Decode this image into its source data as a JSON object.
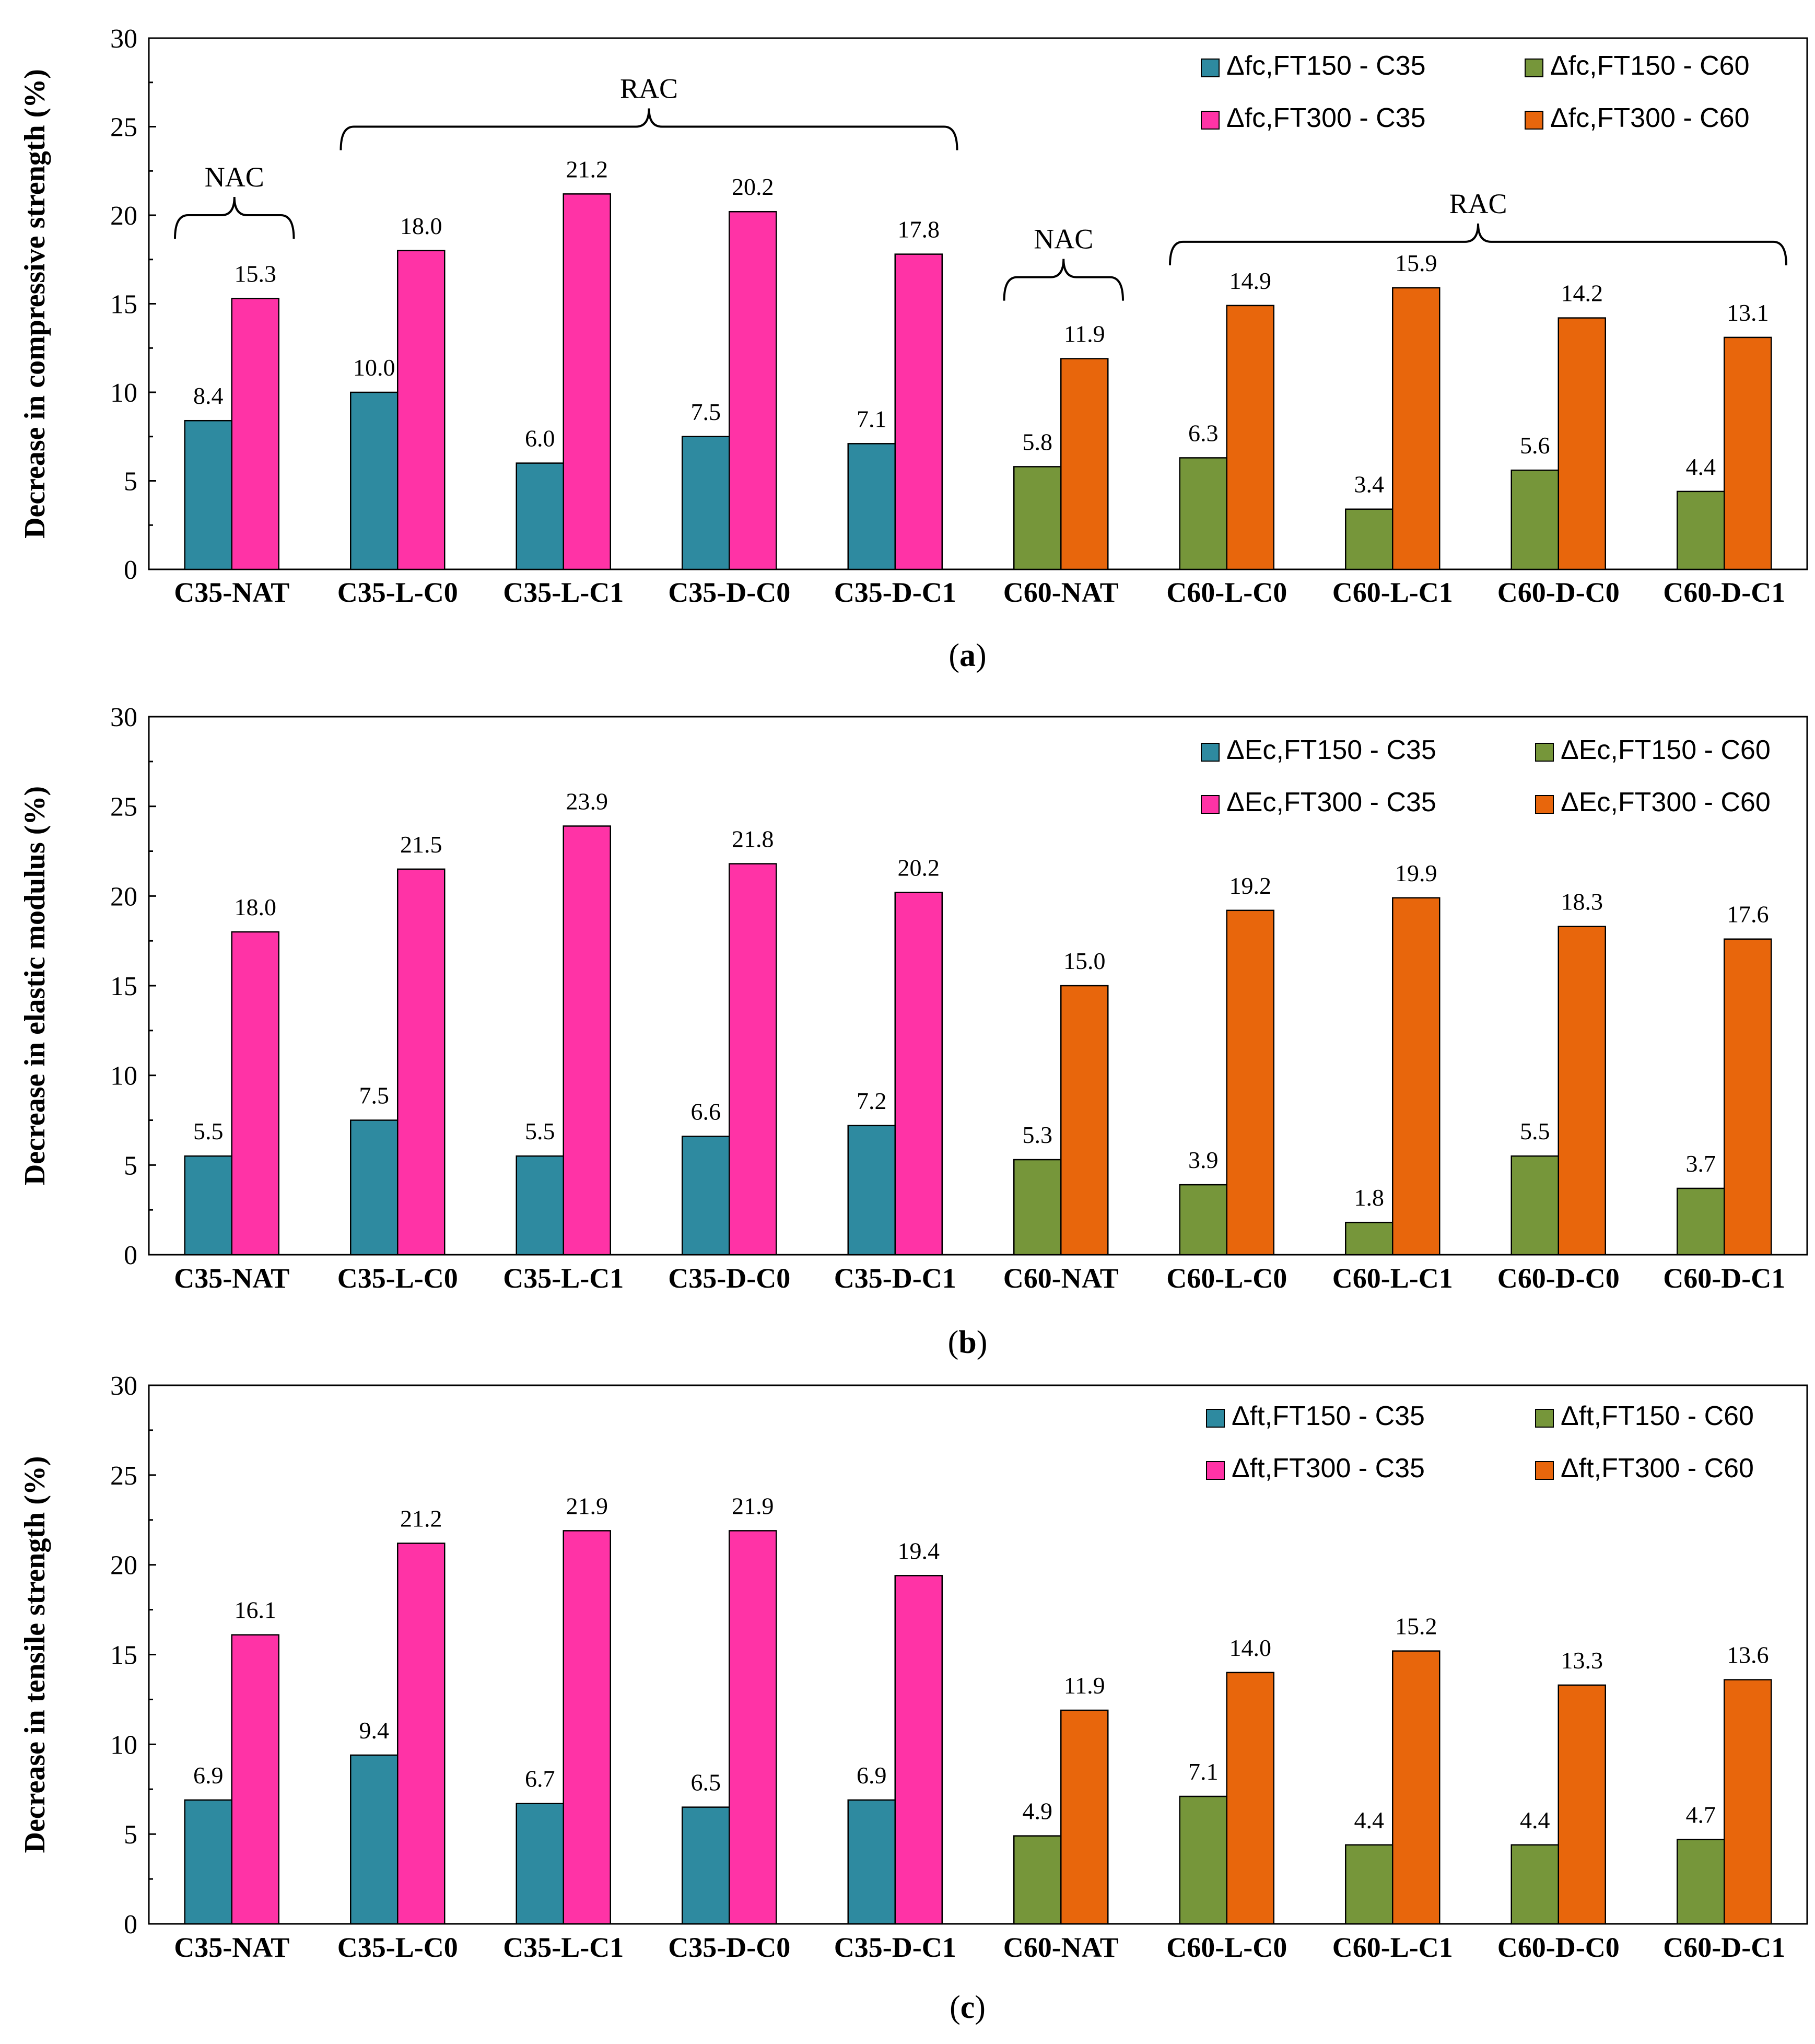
{
  "colors": {
    "c35_ft150": "#2e8aa0",
    "c35_ft300": "#ff33a6",
    "c60_ft150": "#76963a",
    "c60_ft300": "#e8660c",
    "axis": "#000000"
  },
  "chart_data": [
    {
      "type": "bar",
      "panel_label_open": "(",
      "panel_label_letter": "a",
      "panel_label_close": ")",
      "ylabel": "Decrease in compressive strength (%)",
      "xlabel": "",
      "ylim": [
        0,
        30
      ],
      "yticks": [
        0,
        5,
        10,
        15,
        20,
        25,
        30
      ],
      "categories": [
        "C35-NAT",
        "C35-L-C0",
        "C35-L-C1",
        "C35-D-C0",
        "C35-D-C1",
        "C60-NAT",
        "C60-L-C0",
        "C60-L-C1",
        "C60-D-C0",
        "C60-D-C1"
      ],
      "series": [
        {
          "name": "Δfc,FT150 - C35",
          "color_key": "c35_ft150",
          "values": [
            8.4,
            10.0,
            6.0,
            7.5,
            7.1,
            null,
            null,
            null,
            null,
            null
          ]
        },
        {
          "name": "Δfc,FT300 - C35",
          "color_key": "c35_ft300",
          "values": [
            15.3,
            18.0,
            21.2,
            20.2,
            17.8,
            null,
            null,
            null,
            null,
            null
          ]
        },
        {
          "name": "Δfc,FT150 - C60",
          "color_key": "c60_ft150",
          "values": [
            null,
            null,
            null,
            null,
            null,
            5.8,
            6.3,
            3.4,
            5.6,
            4.4
          ]
        },
        {
          "name": "Δfc,FT300 - C60",
          "color_key": "c60_ft300",
          "values": [
            null,
            null,
            null,
            null,
            null,
            11.9,
            14.9,
            15.9,
            14.2,
            13.1
          ]
        }
      ],
      "data_labels": {
        "ft150": [
          "8.4",
          "10.0",
          "6.0",
          "7.5",
          "7.1",
          "5.8",
          "6.3",
          "3.4",
          "5.6",
          "4.4"
        ],
        "ft300": [
          "15.3",
          "18.0",
          "21.2",
          "20.2",
          "17.8",
          "11.9",
          "14.9",
          "15.9",
          "14.2",
          "13.1"
        ]
      },
      "legend": [
        "Δfc,FT150 - C35",
        "Δfc,FT150 - C60",
        "Δfc,FT300 - C35",
        "Δfc,FT300 - C60"
      ],
      "legend_position": "top-right",
      "annotations": [
        {
          "text": "NAC",
          "from_category": 0,
          "to_category": 0,
          "at_value": 20.0
        },
        {
          "text": "RAC",
          "from_category": 1,
          "to_category": 4,
          "at_value": 25.0
        },
        {
          "text": "NAC",
          "from_category": 5,
          "to_category": 5,
          "at_value": 16.5
        },
        {
          "text": "RAC",
          "from_category": 6,
          "to_category": 9,
          "at_value": 18.5
        }
      ]
    },
    {
      "type": "bar",
      "panel_label_open": "(",
      "panel_label_letter": "b",
      "panel_label_close": ")",
      "ylabel": "Decrease in elastic modulus (%)",
      "xlabel": "",
      "ylim": [
        0,
        30
      ],
      "yticks": [
        0,
        5,
        10,
        15,
        20,
        25,
        30
      ],
      "categories": [
        "C35-NAT",
        "C35-L-C0",
        "C35-L-C1",
        "C35-D-C0",
        "C35-D-C1",
        "C60-NAT",
        "C60-L-C0",
        "C60-L-C1",
        "C60-D-C0",
        "C60-D-C1"
      ],
      "series": [
        {
          "name": "ΔEc,FT150 - C35",
          "color_key": "c35_ft150",
          "values": [
            5.5,
            7.5,
            5.5,
            6.6,
            7.2,
            null,
            null,
            null,
            null,
            null
          ]
        },
        {
          "name": "ΔEc,FT300 - C35",
          "color_key": "c35_ft300",
          "values": [
            18.0,
            21.5,
            23.9,
            21.8,
            20.2,
            null,
            null,
            null,
            null,
            null
          ]
        },
        {
          "name": "ΔEc,FT150 - C60",
          "color_key": "c60_ft150",
          "values": [
            null,
            null,
            null,
            null,
            null,
            5.3,
            3.9,
            1.8,
            5.5,
            3.7
          ]
        },
        {
          "name": "ΔEc,FT300 - C60",
          "color_key": "c60_ft300",
          "values": [
            null,
            null,
            null,
            null,
            null,
            15.0,
            19.2,
            19.9,
            18.3,
            17.6
          ]
        }
      ],
      "data_labels": {
        "ft150": [
          "5.5",
          "7.5",
          "5.5",
          "6.6",
          "7.2",
          "5.3",
          "3.9",
          "1.8",
          "5.5",
          "3.7"
        ],
        "ft300": [
          "18.0",
          "21.5",
          "23.9",
          "21.8",
          "20.2",
          "15.0",
          "19.2",
          "19.9",
          "18.3",
          "17.6"
        ]
      },
      "legend": [
        "ΔEc,FT150 - C35",
        "ΔEc,FT150 - C60",
        "ΔEc,FT300 - C35",
        "ΔEc,FT300 - C60"
      ],
      "legend_position": "top-right",
      "annotations": []
    },
    {
      "type": "bar",
      "panel_label_open": "(",
      "panel_label_letter": "c",
      "panel_label_close": ")",
      "ylabel": "Decrease in tensile strength (%)",
      "xlabel": "",
      "ylim": [
        0,
        30
      ],
      "yticks": [
        0,
        5,
        10,
        15,
        20,
        25,
        30
      ],
      "categories": [
        "C35-NAT",
        "C35-L-C0",
        "C35-L-C1",
        "C35-D-C0",
        "C35-D-C1",
        "C60-NAT",
        "C60-L-C0",
        "C60-L-C1",
        "C60-D-C0",
        "C60-D-C1"
      ],
      "series": [
        {
          "name": "Δft,FT150 - C35",
          "color_key": "c35_ft150",
          "values": [
            6.9,
            9.4,
            6.7,
            6.5,
            6.9,
            null,
            null,
            null,
            null,
            null
          ]
        },
        {
          "name": "Δft,FT300 - C35",
          "color_key": "c35_ft300",
          "values": [
            16.1,
            21.2,
            21.9,
            21.9,
            19.4,
            null,
            null,
            null,
            null,
            null
          ]
        },
        {
          "name": "Δft,FT150 - C60",
          "color_key": "c60_ft150",
          "values": [
            null,
            null,
            null,
            null,
            null,
            4.9,
            7.1,
            4.4,
            4.4,
            4.7
          ]
        },
        {
          "name": "Δft,FT300 - C60",
          "color_key": "c60_ft300",
          "values": [
            null,
            null,
            null,
            null,
            null,
            11.9,
            14.0,
            15.2,
            13.3,
            13.6
          ]
        }
      ],
      "data_labels": {
        "ft150": [
          "6.9",
          "9.4",
          "6.7",
          "6.5",
          "6.9",
          "4.9",
          "7.1",
          "4.4",
          "4.4",
          "4.7"
        ],
        "ft300": [
          "16.1",
          "21.2",
          "21.9",
          "21.9",
          "19.4",
          "11.9",
          "14.0",
          "15.2",
          "13.3",
          "13.6"
        ]
      },
      "legend": [
        "Δft,FT150 - C35",
        "Δft,FT150 - C60",
        "Δft,FT300 - C35",
        "Δft,FT300 - C60"
      ],
      "legend_position": "top-right",
      "annotations": []
    }
  ]
}
